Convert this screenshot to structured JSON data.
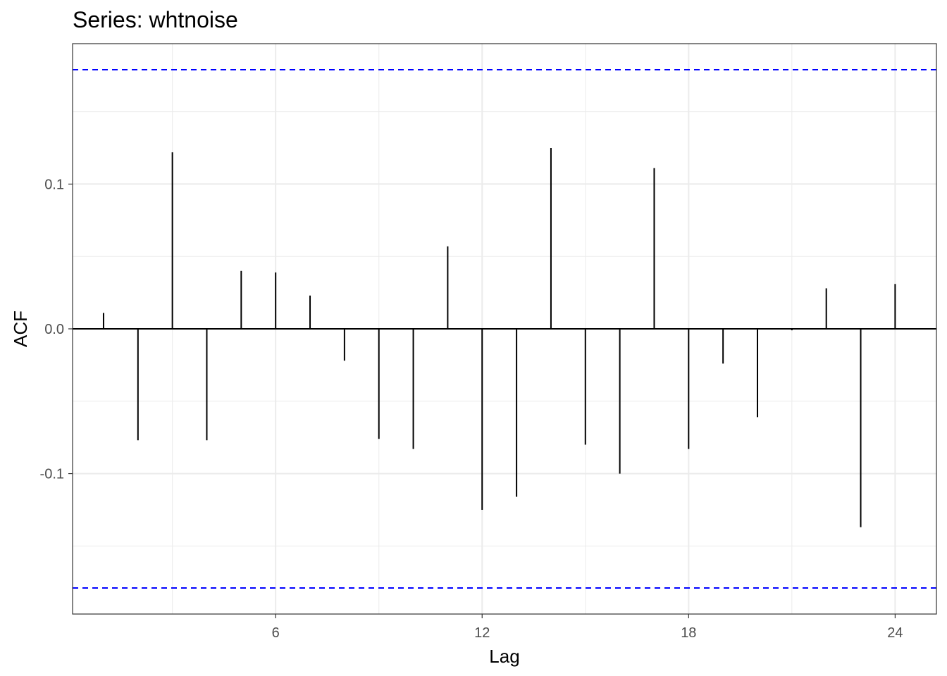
{
  "chart_data": {
    "type": "bar",
    "title": "Series: whtnoise",
    "xlabel": "Lag",
    "ylabel": "ACF",
    "x_ticks": [
      6,
      12,
      18,
      24
    ],
    "y_ticks": [
      -0.1,
      0.0,
      0.1
    ],
    "y_tick_labels": [
      "-0.1",
      "0.0",
      "0.1"
    ],
    "xlim": [
      0.1,
      25.2
    ],
    "ylim": [
      -0.197,
      0.197
    ],
    "grid": true,
    "confidence_bound": 0.179,
    "colors": {
      "bars": "#000000",
      "confidence": "#0000ff",
      "grid": "#ebebeb",
      "panel_border": "#333333"
    },
    "lags": [
      1,
      2,
      3,
      4,
      5,
      6,
      7,
      8,
      9,
      10,
      11,
      12,
      13,
      14,
      15,
      16,
      17,
      18,
      19,
      20,
      21,
      22,
      23,
      24
    ],
    "acf": [
      0.011,
      -0.077,
      0.122,
      -0.077,
      0.04,
      0.039,
      0.023,
      -0.022,
      -0.076,
      -0.083,
      0.057,
      -0.125,
      -0.116,
      0.125,
      -0.08,
      -0.1,
      0.111,
      -0.083,
      -0.024,
      -0.061,
      -0.001,
      0.028,
      -0.137,
      0.031
    ]
  }
}
